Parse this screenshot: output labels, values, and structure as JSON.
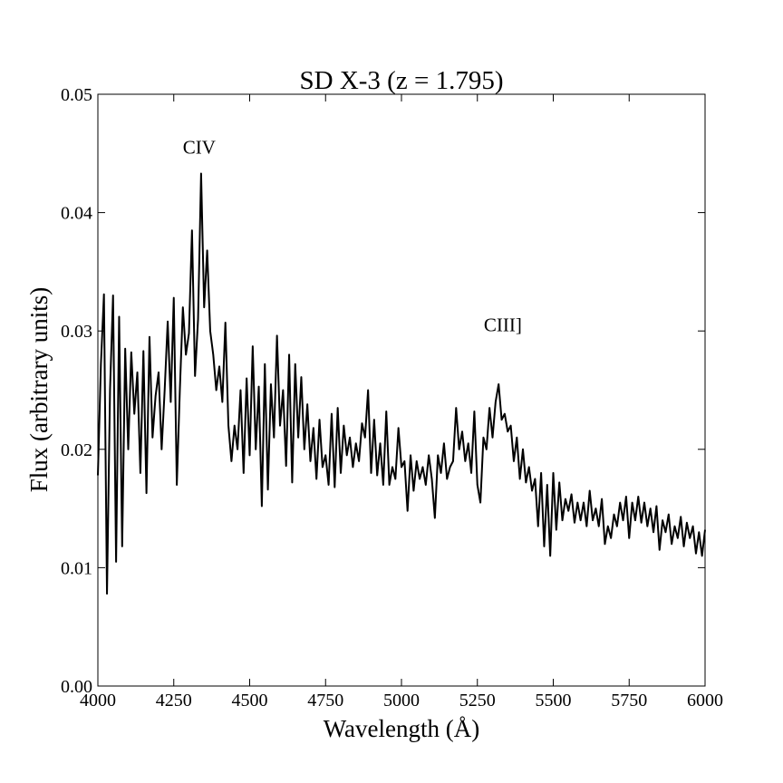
{
  "chart_data": {
    "type": "line",
    "title": "SD X-3 (z = 1.795)",
    "xlabel": "Wavelength (Å)",
    "ylabel": "Flux (arbitrary units)",
    "xlim": [
      4000,
      6000
    ],
    "ylim": [
      0,
      0.05
    ],
    "xticks": [
      4000,
      4250,
      4500,
      4750,
      5000,
      5250,
      5500,
      5750,
      6000
    ],
    "yticks": [
      {
        "value": 0,
        "label": "0.00"
      },
      0.01,
      0.02,
      0.03,
      0.04,
      0.05
    ],
    "grid": false,
    "annotations": [
      {
        "text": "CIV",
        "x": 4334,
        "y": 0.0456
      },
      {
        "text": "CIII]",
        "x": 5334,
        "y": 0.0306
      }
    ],
    "x": [
      4000,
      4010,
      4020,
      4030,
      4040,
      4050,
      4060,
      4070,
      4080,
      4090,
      4100,
      4110,
      4120,
      4130,
      4140,
      4150,
      4160,
      4170,
      4180,
      4190,
      4200,
      4210,
      4220,
      4230,
      4240,
      4250,
      4260,
      4270,
      4280,
      4290,
      4300,
      4310,
      4320,
      4330,
      4340,
      4350,
      4360,
      4370,
      4380,
      4390,
      4400,
      4410,
      4420,
      4430,
      4440,
      4450,
      4460,
      4470,
      4480,
      4490,
      4500,
      4510,
      4520,
      4530,
      4540,
      4550,
      4560,
      4570,
      4580,
      4590,
      4600,
      4610,
      4620,
      4630,
      4640,
      4650,
      4660,
      4670,
      4680,
      4690,
      4700,
      4710,
      4720,
      4730,
      4740,
      4750,
      4760,
      4770,
      4780,
      4790,
      4800,
      4810,
      4820,
      4830,
      4840,
      4850,
      4860,
      4870,
      4880,
      4890,
      4900,
      4910,
      4920,
      4930,
      4940,
      4950,
      4960,
      4970,
      4980,
      4990,
      5000,
      5010,
      5020,
      5030,
      5040,
      5050,
      5060,
      5070,
      5080,
      5090,
      5100,
      5110,
      5120,
      5130,
      5140,
      5150,
      5160,
      5170,
      5180,
      5190,
      5200,
      5210,
      5220,
      5230,
      5240,
      5250,
      5260,
      5270,
      5280,
      5290,
      5300,
      5310,
      5320,
      5330,
      5340,
      5350,
      5360,
      5370,
      5380,
      5390,
      5400,
      5410,
      5420,
      5430,
      5440,
      5450,
      5460,
      5470,
      5480,
      5490,
      5500,
      5510,
      5520,
      5530,
      5540,
      5550,
      5560,
      5570,
      5580,
      5590,
      5600,
      5610,
      5620,
      5630,
      5640,
      5650,
      5660,
      5670,
      5680,
      5690,
      5700,
      5710,
      5720,
      5730,
      5740,
      5750,
      5760,
      5770,
      5780,
      5790,
      5800,
      5810,
      5820,
      5830,
      5840,
      5850,
      5860,
      5870,
      5880,
      5890,
      5900,
      5910,
      5920,
      5930,
      5940,
      5950,
      5960,
      5970,
      5980,
      5990,
      6000
    ],
    "series": [
      {
        "color": "#000000",
        "values": [
          0.0178,
          0.0272,
          0.0331,
          0.0078,
          0.025,
          0.033,
          0.0105,
          0.0312,
          0.0118,
          0.0285,
          0.02,
          0.0282,
          0.023,
          0.0265,
          0.018,
          0.0283,
          0.0163,
          0.0295,
          0.021,
          0.0245,
          0.0265,
          0.02,
          0.025,
          0.0308,
          0.024,
          0.0328,
          0.017,
          0.025,
          0.032,
          0.028,
          0.0298,
          0.0385,
          0.0262,
          0.031,
          0.0433,
          0.032,
          0.0368,
          0.03,
          0.028,
          0.025,
          0.027,
          0.024,
          0.0307,
          0.022,
          0.019,
          0.022,
          0.02,
          0.025,
          0.018,
          0.026,
          0.0195,
          0.0287,
          0.02,
          0.0253,
          0.0152,
          0.0272,
          0.0166,
          0.0255,
          0.021,
          0.0296,
          0.022,
          0.025,
          0.0186,
          0.028,
          0.0172,
          0.0272,
          0.021,
          0.0261,
          0.02,
          0.0238,
          0.019,
          0.0218,
          0.0175,
          0.0225,
          0.0185,
          0.0195,
          0.017,
          0.023,
          0.0168,
          0.0235,
          0.018,
          0.022,
          0.0195,
          0.021,
          0.0185,
          0.0205,
          0.019,
          0.0222,
          0.021,
          0.025,
          0.018,
          0.0225,
          0.0178,
          0.0205,
          0.017,
          0.0232,
          0.017,
          0.0185,
          0.0175,
          0.0218,
          0.0185,
          0.019,
          0.0148,
          0.0195,
          0.0165,
          0.019,
          0.0175,
          0.0185,
          0.017,
          0.0195,
          0.0175,
          0.0142,
          0.0195,
          0.018,
          0.0205,
          0.0175,
          0.0185,
          0.019,
          0.0235,
          0.02,
          0.0215,
          0.019,
          0.0205,
          0.018,
          0.0232,
          0.017,
          0.0155,
          0.021,
          0.02,
          0.0235,
          0.021,
          0.024,
          0.0255,
          0.0225,
          0.023,
          0.0215,
          0.022,
          0.019,
          0.021,
          0.0175,
          0.02,
          0.0172,
          0.0185,
          0.0165,
          0.0175,
          0.0135,
          0.018,
          0.0118,
          0.017,
          0.011,
          0.018,
          0.0132,
          0.0172,
          0.014,
          0.0158,
          0.0148,
          0.0162,
          0.0138,
          0.0155,
          0.014,
          0.0155,
          0.0135,
          0.0165,
          0.014,
          0.015,
          0.0135,
          0.0158,
          0.012,
          0.0135,
          0.0125,
          0.0145,
          0.0135,
          0.0155,
          0.014,
          0.016,
          0.0125,
          0.0155,
          0.014,
          0.016,
          0.0138,
          0.0155,
          0.0135,
          0.015,
          0.013,
          0.0152,
          0.0115,
          0.014,
          0.013,
          0.0145,
          0.012,
          0.0135,
          0.0125,
          0.0143,
          0.0118,
          0.0138,
          0.0125,
          0.0135,
          0.0112,
          0.013,
          0.011,
          0.0132
        ]
      }
    ]
  }
}
